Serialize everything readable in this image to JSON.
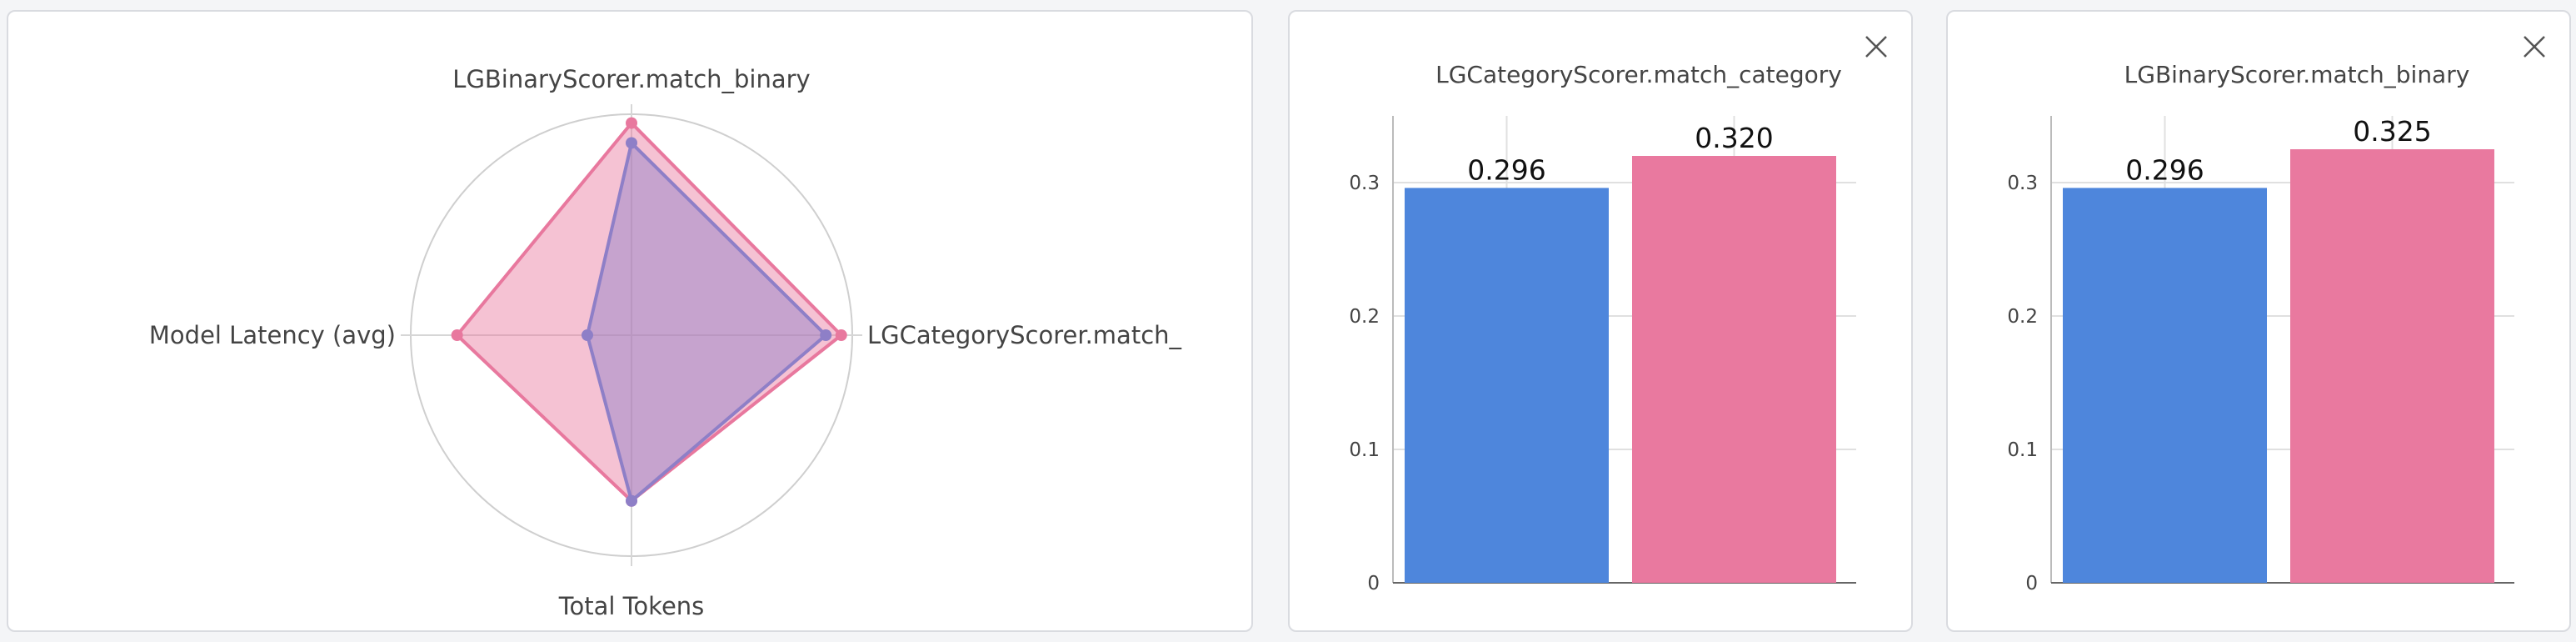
{
  "chart_data": [
    {
      "type": "radar",
      "axes": [
        "LGBinaryScorer.match_binary",
        "LGCategoryScorer.match_",
        "Total Tokens",
        "Model Latency (avg)"
      ],
      "series": [
        {
          "color": "#e8789e",
          "fill": "rgba(232,120,158,0.45)",
          "values": [
            0.96,
            0.95,
            0.75,
            0.79
          ]
        },
        {
          "color": "#8e7fc7",
          "fill": "rgba(142,127,199,0.45)",
          "values": [
            0.87,
            0.88,
            0.75,
            0.2
          ]
        }
      ],
      "grid": true
    },
    {
      "type": "bar",
      "title": "LGCategoryScorer.match_category",
      "values": [
        0.296,
        0.32
      ],
      "data_labels": [
        "0.296",
        "0.320"
      ],
      "colors": [
        "#4e86dc",
        "#e9799f"
      ],
      "yticks": [
        "0",
        "0.1",
        "0.2",
        "0.3"
      ],
      "ylim": [
        0,
        0.35
      ],
      "grid": true
    },
    {
      "type": "bar",
      "title": "LGBinaryScorer.match_binary",
      "values": [
        0.296,
        0.325
      ],
      "data_labels": [
        "0.296",
        "0.325"
      ],
      "colors": [
        "#4e86dc",
        "#e9799f"
      ],
      "yticks": [
        "0",
        "0.1",
        "0.2",
        "0.3"
      ],
      "ylim": [
        0,
        0.35
      ],
      "grid": true
    }
  ]
}
